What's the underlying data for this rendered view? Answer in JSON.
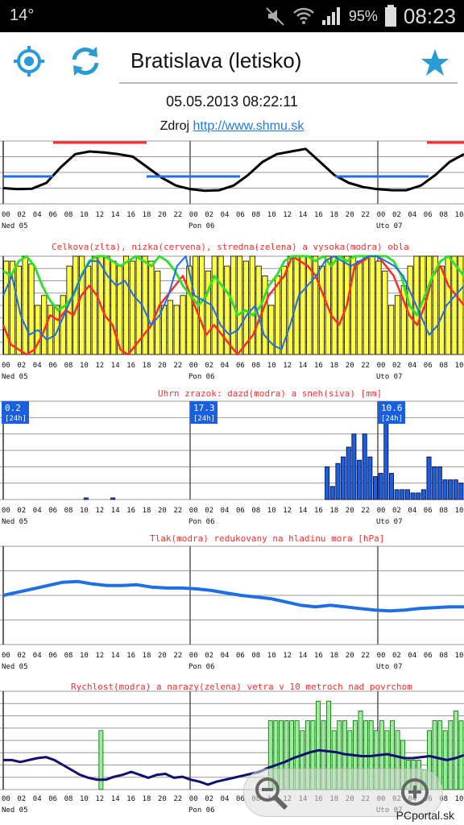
{
  "status_bar": {
    "temperature": "14°",
    "battery_percent": "95%",
    "time": "08:23",
    "icons": [
      "mute-icon",
      "wifi-icon",
      "signal-icon",
      "battery-icon"
    ]
  },
  "toolbar": {
    "location_icon": "location-icon",
    "refresh_icon": "refresh-icon",
    "city": "Bratislava (letisko)",
    "favorite_icon": "star-icon"
  },
  "datetime": "05.05.2013 08:22:11",
  "source": {
    "label": "Zdroj",
    "link_text": "http://www.shmu.sk"
  },
  "hour_ticks": [
    "00",
    "02",
    "04",
    "06",
    "08",
    "10",
    "12",
    "14",
    "16",
    "18",
    "20",
    "22",
    "00",
    "02",
    "04",
    "06",
    "08",
    "10",
    "12",
    "14",
    "16",
    "18",
    "20",
    "22",
    "00",
    "02",
    "04",
    "06",
    "08",
    "10"
  ],
  "day_labels": [
    "Ned 05",
    "Pon 06",
    "Uto 07"
  ],
  "colors": {
    "grid": "#999999",
    "divider": "#555555",
    "red": "#ff2a2a",
    "blue": "#1e6ee6",
    "green": "#33dd33",
    "yellow": "#ffff40",
    "darkblue": "#101070",
    "precip": "#1a5fe0",
    "gust": "#99ee99",
    "badge": "#1a5fe0"
  },
  "chart_data": [
    {
      "type": "line",
      "title": "",
      "x_unit": "hour index",
      "series": [
        {
          "values": [
            3,
            2.8,
            2.9,
            4,
            7,
            9.5,
            10,
            9.8,
            9.5,
            9,
            7,
            5,
            3.5,
            2.8,
            2.5,
            2.6,
            3.5,
            5.5,
            8,
            9.5,
            10,
            10.5,
            8,
            5.5,
            4,
            3.2,
            2.8,
            2.6,
            2.6,
            3.5,
            5.5,
            8,
            9.5
          ]
        }
      ],
      "annotations": [
        "red bars at maxima",
        "blue bars at minima"
      ]
    },
    {
      "type": "bar",
      "title": "Celkova(zlta), nizka(cervena), stredna(zelena) a vysoka(modra) obla",
      "series": [
        {
          "name": "Celkova",
          "values": [
            95,
            95,
            90,
            100,
            92,
            50,
            60,
            50,
            50,
            60,
            90,
            100,
            100,
            90,
            100,
            100,
            100,
            95,
            90,
            100,
            95,
            100,
            100,
            95,
            85,
            50,
            55,
            50,
            60,
            90,
            100,
            100,
            85,
            100,
            100,
            90,
            100,
            100,
            95,
            100,
            90,
            80,
            50,
            80,
            90,
            100,
            100,
            100,
            100,
            100,
            90,
            100,
            100,
            100,
            100,
            100,
            95,
            100,
            100,
            95,
            85,
            50,
            60,
            70,
            90,
            100,
            100,
            100,
            100,
            90,
            100,
            100,
            100
          ]
        },
        {
          "name": "nizka",
          "values": [
            30,
            10,
            5,
            0,
            5,
            20,
            40,
            35,
            45,
            40,
            60,
            70,
            60,
            40,
            30,
            5,
            0,
            10,
            20,
            30,
            50,
            60,
            70,
            80,
            60,
            40,
            20,
            30,
            20,
            10,
            0,
            10,
            20,
            40,
            60,
            70,
            80,
            100,
            95,
            90,
            80,
            60,
            40,
            30,
            50,
            90,
            95,
            100,
            100,
            90,
            80,
            60,
            40,
            30,
            50,
            80,
            90,
            70,
            60,
            50
          ]
        },
        {
          "name": "stredna",
          "values": [
            85,
            80,
            95,
            100,
            90,
            70,
            55,
            45,
            50,
            60,
            80,
            95,
            100,
            100,
            95,
            90,
            95,
            100,
            95,
            90,
            100,
            95,
            85,
            70,
            60,
            50,
            60,
            80,
            70,
            60,
            40,
            45,
            40,
            50,
            70,
            80,
            95,
            100,
            100,
            100,
            95,
            100,
            90,
            100,
            95,
            100,
            100,
            100,
            100,
            100,
            95,
            80,
            50,
            40,
            60,
            80,
            95,
            100,
            90,
            80
          ]
        },
        {
          "name": "vysoka",
          "values": [
            60,
            80,
            40,
            20,
            25,
            15,
            20,
            40,
            60,
            80,
            95,
            95,
            80,
            70,
            75,
            60,
            50,
            30,
            40,
            60,
            90,
            100,
            60,
            55,
            50,
            30,
            20,
            25,
            40,
            50,
            20,
            10,
            5,
            30,
            60,
            70,
            80,
            95,
            100,
            95,
            90,
            95,
            100,
            100,
            95,
            90,
            80,
            60,
            40,
            20,
            30,
            50,
            60,
            70
          ]
        }
      ]
    },
    {
      "type": "bar",
      "title": "Uhrn zrazok: dazd(modra) a sneh(siva) [mm]",
      "badges": [
        {
          "value": "0.2",
          "period": "[24h]"
        },
        {
          "value": "17.3",
          "period": "[24h]"
        },
        {
          "value": "10.6",
          "period": "[24h]"
        }
      ],
      "values": [
        0,
        0,
        0,
        0,
        0,
        0,
        0,
        0,
        0,
        0,
        0,
        0,
        0,
        0,
        0,
        0.1,
        0,
        0,
        0,
        0,
        0.1,
        0,
        0,
        0,
        0,
        0,
        0,
        0,
        0,
        0,
        0,
        0,
        0,
        0,
        0,
        0,
        0,
        0,
        0,
        0,
        0,
        0,
        0,
        0,
        0,
        0,
        0,
        0,
        0,
        0,
        0,
        0,
        0,
        0,
        0,
        0,
        0,
        0,
        0,
        0,
        2,
        0.8,
        2.2,
        2.6,
        3.2,
        4,
        2.4,
        4,
        2.6,
        1.4,
        1.6,
        4.8,
        1.6,
        0.6,
        0.6,
        0.6,
        0.4,
        0.4,
        0.6,
        2.6,
        2.0,
        2.0,
        1.2,
        1.2,
        1.2,
        1.0
      ]
    },
    {
      "type": "line",
      "title": "Tlak(modra) redukovany na hladinu mora [hPa]",
      "series": [
        {
          "name": "Tlak",
          "values": [
            0,
            2,
            4,
            6,
            8,
            8.5,
            7,
            6,
            6,
            6.5,
            5,
            4.5,
            4.5,
            4,
            3,
            1.5,
            0,
            -1,
            -2,
            -4,
            -6,
            -7,
            -6,
            -7,
            -8,
            -9,
            -9.5,
            -9,
            -8,
            -7.5,
            -7,
            -7
          ]
        }
      ]
    },
    {
      "type": "bar",
      "title": "Rychlost(modra) a narazy(zelena) vetra v 10 metroch nad povrchom",
      "series": [
        {
          "name": "narazy",
          "values": [
            0,
            0,
            0,
            0,
            0,
            0,
            0,
            0,
            0,
            0,
            0,
            0,
            0,
            0,
            0,
            0,
            0,
            0,
            6,
            0,
            0,
            0,
            0,
            0,
            0,
            0,
            0,
            0,
            0,
            0,
            0,
            0,
            0,
            0,
            0,
            0,
            0,
            0,
            0,
            0,
            0,
            0,
            0,
            0,
            0,
            0,
            0,
            0,
            0,
            0,
            7,
            7,
            7,
            7,
            7,
            7,
            6,
            7,
            7,
            9,
            7,
            9,
            6,
            7,
            7,
            6,
            7,
            8,
            7,
            7,
            6,
            7,
            6,
            7,
            6,
            5,
            3,
            3,
            3,
            2,
            6,
            7,
            7,
            6,
            7,
            8,
            7
          ]
        },
        {
          "name": "rychlost",
          "values": [
            3,
            3,
            2.8,
            3,
            3.2,
            3.3,
            3,
            2.5,
            2,
            1.5,
            1.2,
            1,
            1,
            1.3,
            1.5,
            1.8,
            1.5,
            1.2,
            1.5,
            1.6,
            1.2,
            1.3,
            1,
            0.8,
            0.5,
            0.8,
            1,
            1.2,
            1.4,
            1.6,
            1.8,
            2.2,
            2.5,
            2.8,
            3.2,
            3.5,
            3.8,
            4,
            3.9,
            3.8,
            3.6,
            3.5,
            3.4,
            3.4,
            3.5,
            3.6,
            3.4,
            3.2,
            3.2,
            3.3,
            3.4,
            3.2,
            3,
            3.2,
            3.5
          ]
        }
      ]
    }
  ],
  "zoom": {
    "minus_icon": "zoom-out-icon",
    "plus_icon": "zoom-in-icon"
  },
  "watermark": "PCportal.sk"
}
